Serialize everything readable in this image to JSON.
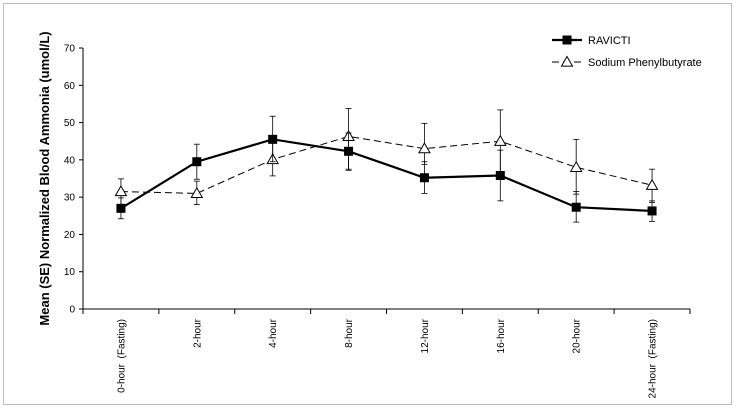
{
  "chart_data": {
    "type": "line",
    "title": "",
    "xlabel": "",
    "ylabel": "Mean (SE) Normalized Blood Ammonia (umol/L)",
    "ylim": [
      0,
      70
    ],
    "yticks": [
      0,
      10,
      20,
      30,
      40,
      50,
      60,
      70
    ],
    "grid": false,
    "legend_position": "top-right",
    "categories": [
      "0-hour  (Fasting)",
      "2-hour",
      "4-hour",
      "8-hour",
      "12-hour",
      "16-hour",
      "20-hour",
      "24-hour  (Fasting)"
    ],
    "series": [
      {
        "name": "RAVICTI",
        "line_style": "solid",
        "marker": "square",
        "color": "#000000",
        "values": [
          27,
          39.5,
          45.5,
          42.3,
          35.2,
          35.8,
          27.3,
          26.3
        ],
        "error_low": [
          24.2,
          34.8,
          39.5,
          37.5,
          31,
          29,
          23.3,
          23.5
        ],
        "error_high": [
          29.8,
          44.2,
          51.7,
          47.2,
          39.5,
          42.6,
          31.5,
          29
        ]
      },
      {
        "name": "Sodium Phenylbutyrate",
        "line_style": "dashed",
        "marker": "triangle-open",
        "color": "#000000",
        "values": [
          31.5,
          31,
          40.1,
          46.3,
          43,
          45,
          38,
          33.2
        ],
        "error_low": [
          28,
          28,
          35.7,
          37.2,
          38.8,
          36.6,
          30.8,
          28.6
        ],
        "error_high": [
          34.9,
          34.3,
          45.7,
          53.8,
          49.8,
          53.4,
          45.5,
          37.5
        ]
      }
    ]
  }
}
